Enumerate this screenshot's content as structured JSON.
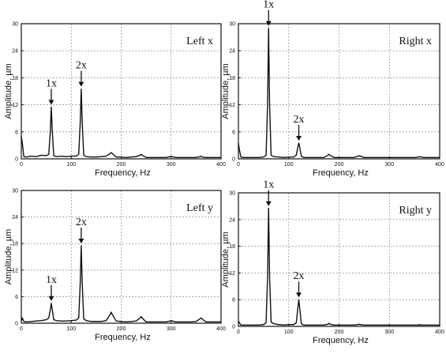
{
  "chart_data": [
    {
      "type": "line",
      "title": "Left x",
      "xlabel": "Frequency, Hz",
      "ylabel": "Amplitude, µm",
      "xlim": [
        0,
        400
      ],
      "ylim": [
        0,
        30
      ],
      "xticks": [
        0,
        100,
        200,
        300,
        400
      ],
      "yticks": [
        0,
        6,
        12,
        18,
        24,
        30
      ],
      "grid": true,
      "series": [
        {
          "x": [
            0,
            2,
            5,
            10,
            20,
            30,
            40,
            50,
            55,
            58,
            60,
            62,
            65,
            70,
            80,
            90,
            100,
            110,
            115,
            118,
            120,
            122,
            125,
            130,
            140,
            150,
            160,
            170,
            178,
            180,
            182,
            190,
            200,
            210,
            220,
            230,
            238,
            240,
            242,
            250,
            260,
            270,
            280,
            290,
            298,
            300,
            302,
            310,
            320,
            330,
            340,
            350,
            358,
            360,
            362,
            370,
            380,
            390,
            400
          ],
          "y": [
            5,
            3.5,
            0.5,
            0.4,
            0.6,
            0.5,
            0.8,
            0.7,
            1,
            6,
            11.5,
            6,
            0.7,
            0.5,
            0.6,
            0.5,
            0.6,
            0.6,
            1,
            8,
            15.5,
            8,
            0.8,
            0.5,
            0.4,
            0.4,
            0.5,
            0.6,
            1.2,
            1.4,
            1.2,
            0.4,
            0.4,
            0.3,
            0.4,
            0.5,
            0.8,
            1,
            0.8,
            0.3,
            0.3,
            0.3,
            0.3,
            0.3,
            0.5,
            0.6,
            0.5,
            0.3,
            0.3,
            0.3,
            0.3,
            0.3,
            0.5,
            0.6,
            0.4,
            0.3,
            0.3,
            0.3,
            0.3
          ]
        }
      ],
      "annotations": [
        {
          "text": "1x",
          "x": 60,
          "y": 11.5
        },
        {
          "text": "2x",
          "x": 120,
          "y": 15.5
        }
      ]
    },
    {
      "type": "line",
      "title": "Right x",
      "xlabel": "Frequency, Hz",
      "ylabel": "Amplitude, µm",
      "xlim": [
        0,
        400
      ],
      "ylim": [
        0,
        30
      ],
      "xticks": [
        0,
        100,
        200,
        300,
        400
      ],
      "yticks": [
        0,
        6,
        12,
        18,
        24,
        30
      ],
      "grid": true,
      "series": [
        {
          "x": [
            0,
            2,
            5,
            10,
            20,
            30,
            40,
            50,
            55,
            58,
            60,
            62,
            65,
            70,
            80,
            90,
            100,
            110,
            115,
            118,
            120,
            122,
            125,
            130,
            140,
            150,
            160,
            170,
            178,
            180,
            182,
            190,
            200,
            210,
            220,
            230,
            238,
            240,
            242,
            250,
            260,
            270,
            280,
            290,
            300,
            310,
            320,
            330,
            340,
            350,
            358,
            360,
            362,
            370,
            380,
            390,
            400
          ],
          "y": [
            3.5,
            2,
            0.4,
            0.3,
            0.3,
            0.3,
            0.3,
            0.4,
            0.8,
            12,
            29,
            12,
            0.8,
            0.5,
            0.4,
            0.3,
            0.4,
            0.4,
            0.8,
            2.5,
            3.5,
            2.5,
            0.6,
            0.3,
            0.3,
            0.3,
            0.3,
            0.3,
            0.8,
            1,
            0.8,
            0.3,
            0.3,
            0.3,
            0.3,
            0.3,
            0.6,
            0.7,
            0.6,
            0.3,
            0.3,
            0.3,
            0.3,
            0.3,
            0.3,
            0.3,
            0.3,
            0.3,
            0.3,
            0.3,
            0.4,
            0.5,
            0.4,
            0.3,
            0.3,
            0.3,
            0.3
          ]
        }
      ],
      "annotations": [
        {
          "text": "1x",
          "x": 60,
          "y": 29
        },
        {
          "text": "2x",
          "x": 120,
          "y": 3.5
        }
      ]
    },
    {
      "type": "line",
      "title": "Left y",
      "xlabel": "Frequency, Hz",
      "ylabel": "Amplitude, µm",
      "xlim": [
        0,
        400
      ],
      "ylim": [
        0,
        30
      ],
      "xticks": [
        0,
        100,
        200,
        300,
        400
      ],
      "yticks": [
        0,
        6,
        12,
        18,
        24,
        30
      ],
      "grid": true,
      "series": [
        {
          "x": [
            0,
            2,
            5,
            10,
            20,
            30,
            40,
            50,
            55,
            58,
            60,
            62,
            65,
            70,
            80,
            90,
            100,
            110,
            115,
            118,
            120,
            122,
            125,
            130,
            140,
            150,
            160,
            170,
            178,
            180,
            182,
            190,
            200,
            210,
            220,
            230,
            238,
            240,
            242,
            250,
            260,
            270,
            280,
            290,
            298,
            300,
            302,
            310,
            320,
            330,
            340,
            350,
            358,
            360,
            362,
            370,
            380,
            390,
            400
          ],
          "y": [
            0.5,
            1.2,
            0.4,
            0.3,
            0.4,
            0.5,
            0.6,
            0.8,
            1.2,
            3,
            4.5,
            3,
            0.8,
            0.6,
            0.5,
            0.5,
            0.6,
            0.7,
            1.2,
            9,
            17.5,
            9,
            1,
            0.6,
            0.4,
            0.4,
            0.4,
            0.6,
            2,
            2.5,
            2,
            0.5,
            0.4,
            0.3,
            0.4,
            0.5,
            1.2,
            1.5,
            1.2,
            0.3,
            0.3,
            0.3,
            0.3,
            0.3,
            0.5,
            0.6,
            0.5,
            0.3,
            0.3,
            0.3,
            0.3,
            0.4,
            1,
            1.2,
            1,
            0.3,
            0.3,
            0.3,
            0.3
          ]
        }
      ],
      "annotations": [
        {
          "text": "1x",
          "x": 60,
          "y": 4.5
        },
        {
          "text": "2x",
          "x": 120,
          "y": 17.5
        }
      ]
    },
    {
      "type": "line",
      "title": "Right y",
      "xlabel": "Frequency, Hz",
      "ylabel": "Amplitude, µm",
      "xlim": [
        0,
        400
      ],
      "ylim": [
        0,
        30
      ],
      "xticks": [
        0,
        100,
        200,
        300,
        400
      ],
      "yticks": [
        0,
        6,
        12,
        18,
        24,
        30
      ],
      "grid": true,
      "series": [
        {
          "x": [
            0,
            2,
            5,
            10,
            20,
            30,
            40,
            50,
            55,
            58,
            60,
            62,
            65,
            70,
            80,
            90,
            100,
            110,
            115,
            118,
            120,
            122,
            125,
            130,
            140,
            150,
            160,
            170,
            178,
            180,
            182,
            190,
            200,
            210,
            220,
            230,
            238,
            240,
            242,
            250,
            260,
            270,
            280,
            290,
            300,
            310,
            320,
            330,
            340,
            350,
            358,
            360,
            362,
            370,
            380,
            390,
            400
          ],
          "y": [
            1.2,
            0.8,
            0.3,
            0.3,
            0.3,
            0.3,
            0.3,
            0.4,
            0.8,
            11,
            26.5,
            11,
            1,
            0.6,
            0.4,
            0.3,
            0.4,
            0.4,
            0.8,
            4,
            6,
            4,
            0.6,
            0.3,
            0.3,
            0.3,
            0.3,
            0.3,
            0.5,
            0.7,
            0.5,
            0.3,
            0.3,
            0.3,
            0.3,
            0.3,
            0.4,
            0.5,
            0.4,
            0.3,
            0.3,
            0.3,
            0.3,
            0.3,
            0.3,
            0.3,
            0.3,
            0.3,
            0.3,
            0.3,
            0.3,
            0.4,
            0.3,
            0.3,
            0.3,
            0.3,
            0.3
          ]
        }
      ],
      "annotations": [
        {
          "text": "1x",
          "x": 60,
          "y": 26.5
        },
        {
          "text": "2x",
          "x": 120,
          "y": 6
        }
      ]
    }
  ]
}
